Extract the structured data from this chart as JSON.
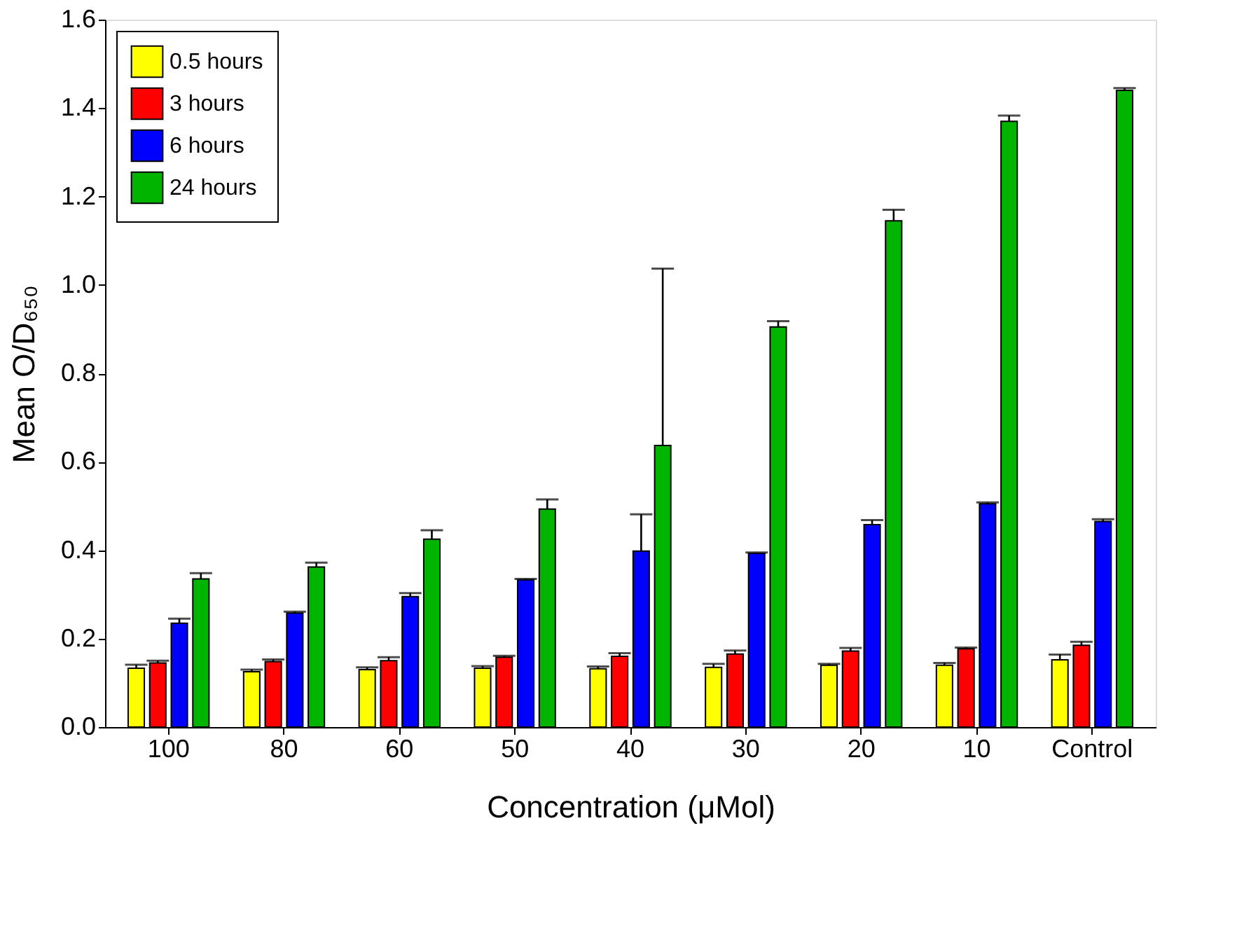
{
  "chart_data": {
    "type": "bar",
    "xlabel": "Concentration (μMol)",
    "ylabel": "Mean O/D₆₅₀",
    "categories": [
      "100",
      "80",
      "60",
      "50",
      "40",
      "30",
      "20",
      "10",
      "Control"
    ],
    "series": [
      {
        "name": "0.5 hours",
        "color": "#ffff00",
        "values": [
          0.133,
          0.125,
          0.13,
          0.133,
          0.132,
          0.135,
          0.14,
          0.14,
          0.152
        ],
        "errors": [
          [
            0.133,
            0.141
          ],
          [
            0.125,
            0.13
          ],
          [
            0.13,
            0.135
          ],
          [
            0.133,
            0.138
          ],
          [
            0.132,
            0.137
          ],
          [
            0.135,
            0.143
          ],
          [
            0.14,
            0.143
          ],
          [
            0.14,
            0.145
          ],
          [
            0.152,
            0.164
          ]
        ]
      },
      {
        "name": "3 hours",
        "color": "#ff0000",
        "values": [
          0.145,
          0.148,
          0.15,
          0.158,
          0.16,
          0.165,
          0.172,
          0.177,
          0.185
        ],
        "errors": [
          [
            0.145,
            0.15
          ],
          [
            0.148,
            0.153
          ],
          [
            0.15,
            0.158
          ],
          [
            0.158,
            0.161
          ],
          [
            0.16,
            0.167
          ],
          [
            0.165,
            0.173
          ],
          [
            0.172,
            0.179
          ],
          [
            0.177,
            0.18
          ],
          [
            0.185,
            0.193
          ]
        ]
      },
      {
        "name": "6 hours",
        "color": "#0000ff",
        "values": [
          0.235,
          0.258,
          0.295,
          0.333,
          0.398,
          0.393,
          0.458,
          0.505,
          0.465
        ],
        "errors": [
          [
            0.235,
            0.245
          ],
          [
            0.258,
            0.261
          ],
          [
            0.295,
            0.303
          ],
          [
            0.333,
            0.335
          ],
          [
            0.398,
            0.481
          ],
          [
            0.393,
            0.395
          ],
          [
            0.458,
            0.468
          ],
          [
            0.505,
            0.508
          ],
          [
            0.465,
            0.47
          ]
        ]
      },
      {
        "name": "24 hours",
        "color": "#00b400",
        "values": [
          0.335,
          0.362,
          0.425,
          0.493,
          0.637,
          0.905,
          1.145,
          1.37,
          1.44
        ],
        "errors": [
          [
            0.335,
            0.348
          ],
          [
            0.362,
            0.372
          ],
          [
            0.425,
            0.445
          ],
          [
            0.493,
            0.515
          ],
          [
            0.637,
            1.037
          ],
          [
            0.905,
            0.918
          ],
          [
            1.145,
            1.17
          ],
          [
            1.37,
            1.383
          ],
          [
            1.44,
            1.445
          ]
        ]
      }
    ],
    "ylim": [
      0,
      1.6
    ],
    "yticks": [
      {
        "value": 0,
        "label": "0.0"
      },
      0.2,
      0.4,
      0.6,
      0.8,
      {
        "value": 1,
        "label": "1.0"
      },
      1.2,
      1.4,
      1.6
    ],
    "legend": "top left",
    "grid": false
  }
}
